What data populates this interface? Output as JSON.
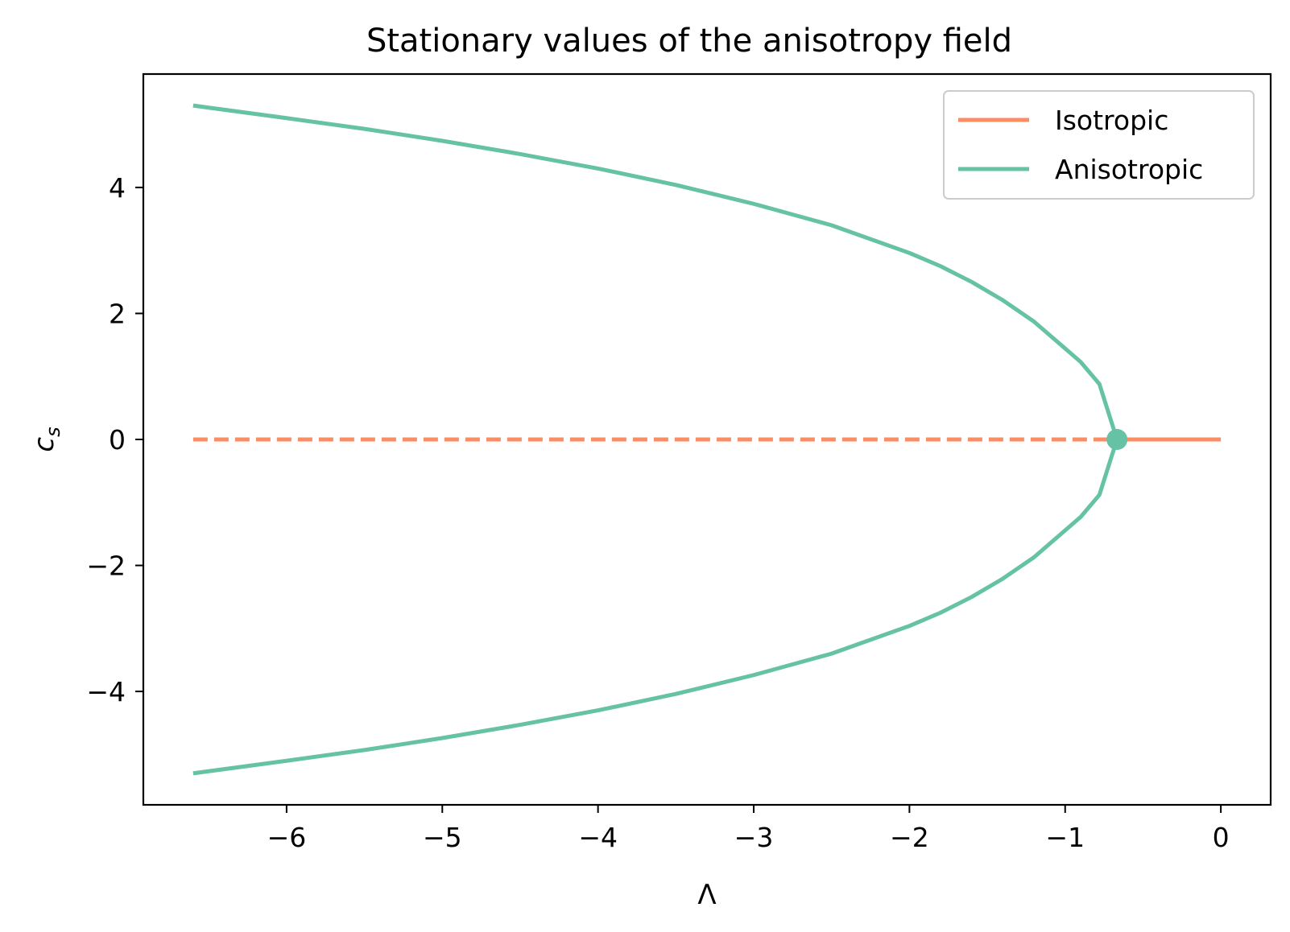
{
  "chart_data": {
    "type": "line",
    "title": "Stationary values of the anisotropy field",
    "xlabel": "Λ",
    "ylabel_main": "c",
    "ylabel_sub": "s",
    "xlim": [
      -6.92,
      0.32
    ],
    "ylim": [
      -5.8,
      5.8
    ],
    "xticks": [
      {
        "value": -6,
        "label": "−6"
      },
      {
        "value": -5,
        "label": "−5"
      },
      {
        "value": -4,
        "label": "−4"
      },
      {
        "value": -3,
        "label": "−3"
      },
      {
        "value": -2,
        "label": "−2"
      },
      {
        "value": -1,
        "label": "−1"
      },
      {
        "value": 0,
        "label": "0"
      }
    ],
    "yticks": [
      {
        "value": -4,
        "label": "−4"
      },
      {
        "value": -2,
        "label": "−2"
      },
      {
        "value": 0,
        "label": "0"
      },
      {
        "value": 2,
        "label": "2"
      },
      {
        "value": 4,
        "label": "4"
      }
    ],
    "grid": false,
    "legend": {
      "position": "top-right",
      "entries": [
        {
          "label": "Isotropic",
          "color": "#fc8d62"
        },
        {
          "label": "Anisotropic",
          "color": "#66c2a5"
        }
      ]
    },
    "series": [
      {
        "name": "Isotropic",
        "segment": "unstable",
        "color": "#fc8d62",
        "dashed": true,
        "x": [
          -6.6,
          -0.667
        ],
        "y": [
          0,
          0
        ]
      },
      {
        "name": "Isotropic",
        "segment": "stable",
        "color": "#fc8d62",
        "dashed": false,
        "x": [
          -0.667,
          0
        ],
        "y": [
          0,
          0
        ]
      },
      {
        "name": "Anisotropic",
        "segment": "upper",
        "color": "#66c2a5",
        "dashed": false,
        "x": [
          -6.6,
          -6.0,
          -5.5,
          -5.0,
          -4.5,
          -4.0,
          -3.5,
          -3.0,
          -2.5,
          -2.0,
          -1.8,
          -1.6,
          -1.4,
          -1.2,
          -1.05,
          -0.9,
          -0.78,
          -0.667
        ],
        "y": [
          5.3,
          5.1,
          4.93,
          4.74,
          4.53,
          4.3,
          4.04,
          3.74,
          3.4,
          2.96,
          2.75,
          2.5,
          2.21,
          1.87,
          1.55,
          1.23,
          0.88,
          0.0
        ]
      },
      {
        "name": "Anisotropic",
        "segment": "lower",
        "color": "#66c2a5",
        "dashed": false,
        "x": [
          -6.6,
          -6.0,
          -5.5,
          -5.0,
          -4.5,
          -4.0,
          -3.5,
          -3.0,
          -2.5,
          -2.0,
          -1.8,
          -1.6,
          -1.4,
          -1.2,
          -1.05,
          -0.9,
          -0.78,
          -0.667
        ],
        "y": [
          -5.3,
          -5.1,
          -4.93,
          -4.74,
          -4.53,
          -4.3,
          -4.04,
          -3.74,
          -3.4,
          -2.96,
          -2.75,
          -2.5,
          -2.21,
          -1.87,
          -1.55,
          -1.23,
          -0.88,
          0.0
        ]
      }
    ],
    "markers": [
      {
        "x": -0.667,
        "y": 0,
        "color": "#66c2a5"
      }
    ]
  }
}
